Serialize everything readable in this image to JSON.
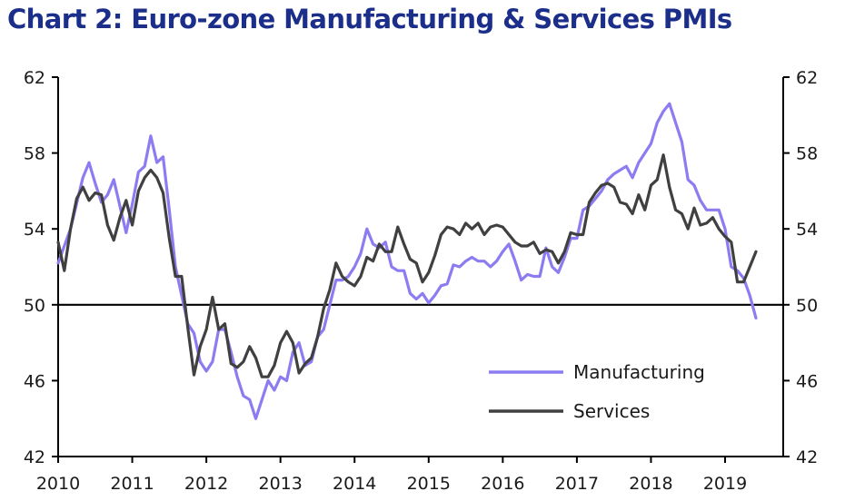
{
  "chart_data": {
    "type": "line",
    "title": "Chart 2: Euro-zone Manufacturing & Services PMIs",
    "xlabel": "",
    "ylabel": "",
    "x_ticks": [
      "2010",
      "2011",
      "2012",
      "2013",
      "2014",
      "2015",
      "2016",
      "2017",
      "2018",
      "2019"
    ],
    "y_ticks": [
      42,
      46,
      50,
      54,
      58,
      62
    ],
    "ylim": [
      42,
      62
    ],
    "x_range": [
      "2010-01",
      "2019-06"
    ],
    "reference_line": 50,
    "grid": false,
    "legend_placement": "bottom-right",
    "colors": {
      "manufacturing": "#8c7cf2",
      "services": "#404040",
      "title": "#1b2e8a",
      "axis": "#000000"
    },
    "series": [
      {
        "name": "Manufacturing",
        "points": [
          [
            "2010-01",
            52.2
          ],
          [
            "2010-03",
            54.0
          ],
          [
            "2010-05",
            56.7
          ],
          [
            "2010-06",
            57.5
          ],
          [
            "2010-07",
            56.4
          ],
          [
            "2010-08",
            55.4
          ],
          [
            "2010-09",
            55.8
          ],
          [
            "2010-10",
            56.6
          ],
          [
            "2010-11",
            55.2
          ],
          [
            "2010-12",
            53.8
          ],
          [
            "2011-01",
            55.3
          ],
          [
            "2011-02",
            57.0
          ],
          [
            "2011-03",
            57.3
          ],
          [
            "2011-04",
            58.9
          ],
          [
            "2011-05",
            57.5
          ],
          [
            "2011-06",
            57.8
          ],
          [
            "2011-07",
            55.0
          ],
          [
            "2011-08",
            52.0
          ],
          [
            "2011-09",
            50.5
          ],
          [
            "2011-10",
            49.0
          ],
          [
            "2011-11",
            48.5
          ],
          [
            "2011-12",
            47.0
          ],
          [
            "2012-01",
            46.5
          ],
          [
            "2012-02",
            47.0
          ],
          [
            "2012-03",
            48.7
          ],
          [
            "2012-04",
            48.7
          ],
          [
            "2012-05",
            47.5
          ],
          [
            "2012-06",
            46.2
          ],
          [
            "2012-07",
            45.2
          ],
          [
            "2012-08",
            45.0
          ],
          [
            "2012-09",
            44.0
          ],
          [
            "2012-10",
            45.0
          ],
          [
            "2012-11",
            46.0
          ],
          [
            "2012-12",
            45.5
          ],
          [
            "2013-01",
            46.2
          ],
          [
            "2013-02",
            46.0
          ],
          [
            "2013-03",
            47.5
          ],
          [
            "2013-04",
            48.0
          ],
          [
            "2013-05",
            46.8
          ],
          [
            "2013-06",
            47.0
          ],
          [
            "2013-07",
            48.3
          ],
          [
            "2013-08",
            48.7
          ],
          [
            "2013-09",
            50.0
          ],
          [
            "2013-10",
            51.3
          ],
          [
            "2013-11",
            51.3
          ],
          [
            "2013-12",
            51.5
          ],
          [
            "2014-01",
            52.0
          ],
          [
            "2014-02",
            52.7
          ],
          [
            "2014-03",
            54.0
          ],
          [
            "2014-04",
            53.2
          ],
          [
            "2014-05",
            53.0
          ],
          [
            "2014-06",
            53.3
          ],
          [
            "2014-07",
            52.0
          ],
          [
            "2014-08",
            51.8
          ],
          [
            "2014-09",
            51.8
          ],
          [
            "2014-10",
            50.6
          ],
          [
            "2014-11",
            50.3
          ],
          [
            "2014-12",
            50.6
          ],
          [
            "2015-01",
            50.1
          ],
          [
            "2015-02",
            50.5
          ],
          [
            "2015-03",
            51.0
          ],
          [
            "2015-04",
            51.1
          ],
          [
            "2015-05",
            52.1
          ],
          [
            "2015-06",
            52.0
          ],
          [
            "2015-07",
            52.3
          ],
          [
            "2015-08",
            52.5
          ],
          [
            "2015-09",
            52.3
          ],
          [
            "2015-10",
            52.3
          ],
          [
            "2015-11",
            52.0
          ],
          [
            "2015-12",
            52.3
          ],
          [
            "2016-01",
            52.8
          ],
          [
            "2016-02",
            53.2
          ],
          [
            "2016-03",
            52.3
          ],
          [
            "2016-04",
            51.3
          ],
          [
            "2016-05",
            51.6
          ],
          [
            "2016-06",
            51.5
          ],
          [
            "2016-07",
            51.5
          ],
          [
            "2016-08",
            53.0
          ],
          [
            "2016-09",
            52.0
          ],
          [
            "2016-10",
            51.7
          ],
          [
            "2016-11",
            52.5
          ],
          [
            "2016-12",
            53.5
          ],
          [
            "2017-01",
            53.5
          ],
          [
            "2017-02",
            55.0
          ],
          [
            "2017-03",
            55.2
          ],
          [
            "2017-04",
            55.6
          ],
          [
            "2017-05",
            56.0
          ],
          [
            "2017-06",
            56.6
          ],
          [
            "2017-07",
            56.9
          ],
          [
            "2017-08",
            57.1
          ],
          [
            "2017-09",
            57.3
          ],
          [
            "2017-10",
            56.7
          ],
          [
            "2017-11",
            57.5
          ],
          [
            "2017-12",
            58.0
          ],
          [
            "2018-01",
            58.5
          ],
          [
            "2018-02",
            59.6
          ],
          [
            "2018-03",
            60.2
          ],
          [
            "2018-04",
            60.6
          ],
          [
            "2018-05",
            59.6
          ],
          [
            "2018-06",
            58.6
          ],
          [
            "2018-07",
            56.6
          ],
          [
            "2018-08",
            56.3
          ],
          [
            "2018-09",
            55.5
          ],
          [
            "2018-10",
            55.0
          ],
          [
            "2018-11",
            55.0
          ],
          [
            "2018-12",
            55.0
          ],
          [
            "2019-01",
            54.0
          ],
          [
            "2019-02",
            52.0
          ],
          [
            "2019-03",
            51.8
          ],
          [
            "2019-04",
            51.4
          ],
          [
            "2019-05",
            50.5
          ],
          [
            "2019-06",
            49.3
          ]
        ]
      },
      {
        "name": "Services",
        "points": [
          [
            "2010-01",
            53.3
          ],
          [
            "2010-02",
            51.8
          ],
          [
            "2010-03",
            54.0
          ],
          [
            "2010-04",
            55.6
          ],
          [
            "2010-05",
            56.2
          ],
          [
            "2010-06",
            55.5
          ],
          [
            "2010-07",
            55.9
          ],
          [
            "2010-08",
            55.8
          ],
          [
            "2010-09",
            54.2
          ],
          [
            "2010-10",
            53.4
          ],
          [
            "2010-11",
            54.6
          ],
          [
            "2010-12",
            55.5
          ],
          [
            "2011-01",
            54.2
          ],
          [
            "2011-02",
            56.0
          ],
          [
            "2011-03",
            56.7
          ],
          [
            "2011-04",
            57.1
          ],
          [
            "2011-05",
            56.7
          ],
          [
            "2011-06",
            55.9
          ],
          [
            "2011-07",
            53.5
          ],
          [
            "2011-08",
            51.5
          ],
          [
            "2011-09",
            51.5
          ],
          [
            "2011-10",
            48.8
          ],
          [
            "2011-11",
            46.3
          ],
          [
            "2011-12",
            47.8
          ],
          [
            "2012-01",
            48.7
          ],
          [
            "2012-02",
            50.4
          ],
          [
            "2012-03",
            48.7
          ],
          [
            "2012-04",
            49.0
          ],
          [
            "2012-05",
            46.9
          ],
          [
            "2012-06",
            46.7
          ],
          [
            "2012-07",
            47.0
          ],
          [
            "2012-08",
            47.8
          ],
          [
            "2012-09",
            47.2
          ],
          [
            "2012-10",
            46.2
          ],
          [
            "2012-11",
            46.2
          ],
          [
            "2012-12",
            46.8
          ],
          [
            "2013-01",
            48.0
          ],
          [
            "2013-02",
            48.6
          ],
          [
            "2013-03",
            48.0
          ],
          [
            "2013-04",
            46.4
          ],
          [
            "2013-05",
            46.9
          ],
          [
            "2013-06",
            47.2
          ],
          [
            "2013-07",
            48.3
          ],
          [
            "2013-08",
            49.8
          ],
          [
            "2013-09",
            50.8
          ],
          [
            "2013-10",
            52.2
          ],
          [
            "2013-11",
            51.5
          ],
          [
            "2013-12",
            51.2
          ],
          [
            "2014-01",
            51.0
          ],
          [
            "2014-02",
            51.5
          ],
          [
            "2014-03",
            52.5
          ],
          [
            "2014-04",
            52.3
          ],
          [
            "2014-05",
            53.2
          ],
          [
            "2014-06",
            52.8
          ],
          [
            "2014-07",
            52.8
          ],
          [
            "2014-08",
            54.1
          ],
          [
            "2014-09",
            53.2
          ],
          [
            "2014-10",
            52.4
          ],
          [
            "2014-11",
            52.2
          ],
          [
            "2014-12",
            51.2
          ],
          [
            "2015-01",
            51.7
          ],
          [
            "2015-02",
            52.6
          ],
          [
            "2015-03",
            53.7
          ],
          [
            "2015-04",
            54.1
          ],
          [
            "2015-05",
            54.0
          ],
          [
            "2015-06",
            53.7
          ],
          [
            "2015-07",
            54.3
          ],
          [
            "2015-08",
            54.0
          ],
          [
            "2015-09",
            54.3
          ],
          [
            "2015-10",
            53.7
          ],
          [
            "2015-11",
            54.1
          ],
          [
            "2015-12",
            54.2
          ],
          [
            "2016-01",
            54.1
          ],
          [
            "2016-02",
            53.7
          ],
          [
            "2016-03",
            53.3
          ],
          [
            "2016-04",
            53.1
          ],
          [
            "2016-05",
            53.1
          ],
          [
            "2016-06",
            53.3
          ],
          [
            "2016-07",
            52.7
          ],
          [
            "2016-08",
            52.9
          ],
          [
            "2016-09",
            52.8
          ],
          [
            "2016-10",
            52.2
          ],
          [
            "2016-11",
            52.8
          ],
          [
            "2016-12",
            53.8
          ],
          [
            "2017-01",
            53.7
          ],
          [
            "2017-02",
            53.7
          ],
          [
            "2017-03",
            55.4
          ],
          [
            "2017-04",
            55.9
          ],
          [
            "2017-05",
            56.3
          ],
          [
            "2017-06",
            56.4
          ],
          [
            "2017-07",
            56.2
          ],
          [
            "2017-08",
            55.4
          ],
          [
            "2017-09",
            55.3
          ],
          [
            "2017-10",
            54.8
          ],
          [
            "2017-11",
            55.8
          ],
          [
            "2017-12",
            55.0
          ],
          [
            "2018-01",
            56.3
          ],
          [
            "2018-02",
            56.6
          ],
          [
            "2018-03",
            57.9
          ],
          [
            "2018-04",
            56.2
          ],
          [
            "2018-05",
            55.0
          ],
          [
            "2018-06",
            54.8
          ],
          [
            "2018-07",
            54.0
          ],
          [
            "2018-08",
            55.1
          ],
          [
            "2018-09",
            54.2
          ],
          [
            "2018-10",
            54.3
          ],
          [
            "2018-11",
            54.6
          ],
          [
            "2018-12",
            54.0
          ],
          [
            "2019-01",
            53.6
          ],
          [
            "2019-02",
            53.3
          ],
          [
            "2019-03",
            51.2
          ],
          [
            "2019-04",
            51.2
          ],
          [
            "2019-05",
            52.0
          ],
          [
            "2019-06",
            52.8
          ]
        ]
      }
    ]
  }
}
